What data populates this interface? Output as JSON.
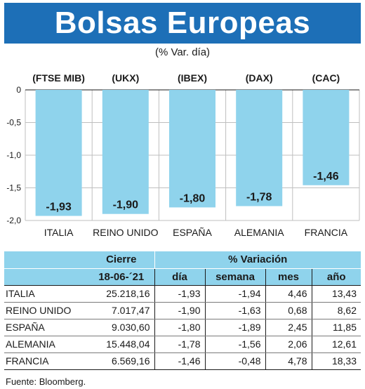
{
  "title": "Bolsas Europeas",
  "subtitle": "(% Var. día)",
  "colors": {
    "header": "#1d6fb7",
    "bar": "#8fd3ec",
    "table_header": "#8fd3ec"
  },
  "chart_data": {
    "type": "bar",
    "categories": [
      "ITALIA",
      "REINO UNIDO",
      "ESPAÑA",
      "ALEMANIA",
      "FRANCIA"
    ],
    "index_labels": [
      "(FTSE MIB)",
      "(UKX)",
      "(IBEX)",
      "(DAX)",
      "(CAC)"
    ],
    "values": [
      -1.93,
      -1.9,
      -1.8,
      -1.78,
      -1.46
    ],
    "value_labels": [
      "-1,93",
      "-1,90",
      "-1,80",
      "-1,78",
      "-1,46"
    ],
    "ylim": [
      -2.0,
      0
    ],
    "yticks": [
      0,
      -0.5,
      -1.0,
      -1.5,
      -2.0
    ],
    "ytick_labels": [
      "0",
      "-0,5",
      "-1,0",
      "-1,5",
      "-2,0"
    ],
    "grid": true
  },
  "table": {
    "group_headers": {
      "close": "Cierre",
      "variation": "% Variación"
    },
    "columns": [
      "18-06-´21",
      "día",
      "semana",
      "mes",
      "año"
    ],
    "rows": [
      {
        "name": "ITALIA",
        "close": "25.218,16",
        "day": "-1,93",
        "week": "-1,94",
        "month": "4,46",
        "year": "13,43"
      },
      {
        "name": "REINO UNIDO",
        "close": "7.017,47",
        "day": "-1,90",
        "week": "-1,63",
        "month": "0,68",
        "year": "8,62"
      },
      {
        "name": "ESPAÑA",
        "close": "9.030,60",
        "day": "-1,80",
        "week": "-1,89",
        "month": "2,45",
        "year": "11,85"
      },
      {
        "name": "ALEMANIA",
        "close": "15.448,04",
        "day": "-1,78",
        "week": "-1,56",
        "month": "2,06",
        "year": "12,61"
      },
      {
        "name": "FRANCIA",
        "close": "6.569,16",
        "day": "-1,46",
        "week": "-0,48",
        "month": "4,78",
        "year": "18,33"
      }
    ]
  },
  "source": "Fuente: Bloomberg."
}
